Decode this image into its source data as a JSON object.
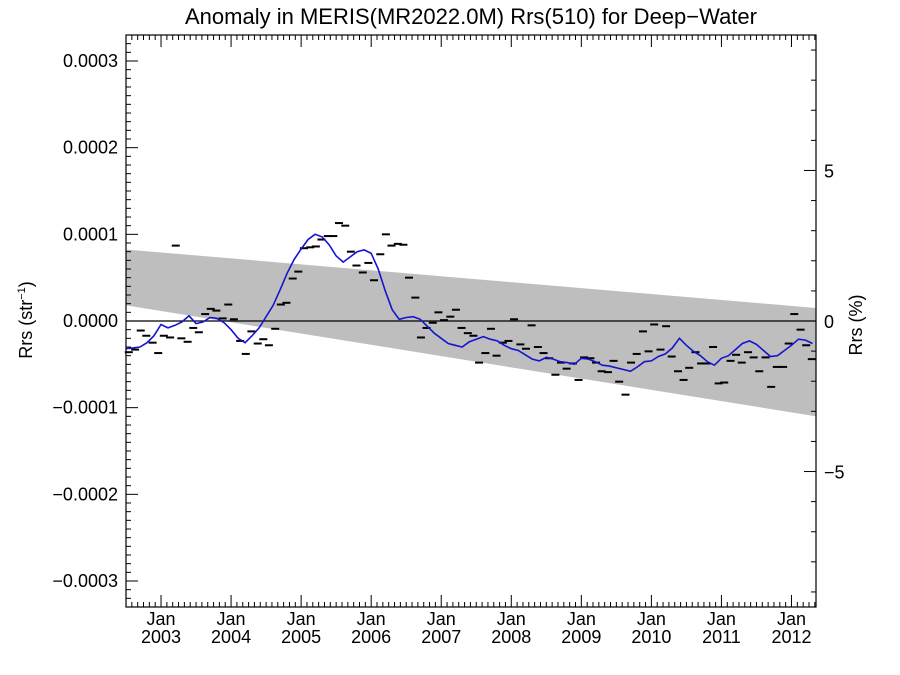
{
  "chart_data": {
    "type": "line",
    "title": "Anomaly in MERIS(MR2022.0M) Rrs(510) for Deep−Water",
    "ylabel": "Rrs (str",
    "ylabel_sup": "−1",
    "ylabel_close": ")",
    "y2label": "Rrs (%)",
    "xlim": [
      2002.5,
      2012.35
    ],
    "ylim": [
      -0.00033,
      0.00033
    ],
    "y2lim": [
      -9.5,
      9.5
    ],
    "xtick_month": "Jan",
    "xticks": [
      {
        "x": 2003.0,
        "label": "2003"
      },
      {
        "x": 2004.0,
        "label": "2004"
      },
      {
        "x": 2005.0,
        "label": "2005"
      },
      {
        "x": 2006.0,
        "label": "2006"
      },
      {
        "x": 2007.0,
        "label": "2007"
      },
      {
        "x": 2008.0,
        "label": "2008"
      },
      {
        "x": 2009.0,
        "label": "2009"
      },
      {
        "x": 2010.0,
        "label": "2010"
      },
      {
        "x": 2011.0,
        "label": "2011"
      },
      {
        "x": 2012.0,
        "label": "2012"
      }
    ],
    "yticks": [
      {
        "v": 0.0003,
        "label": "0.0003"
      },
      {
        "v": 0.0002,
        "label": "0.0002"
      },
      {
        "v": 0.0001,
        "label": "0.0001"
      },
      {
        "v": 0.0,
        "label": "0.0000"
      },
      {
        "v": -0.0001,
        "label": "−0.0001"
      },
      {
        "v": -0.0002,
        "label": "−0.0002"
      },
      {
        "v": -0.0003,
        "label": "−0.0003"
      }
    ],
    "y2ticks": [
      {
        "v": 5,
        "label": "5"
      },
      {
        "v": 0,
        "label": "0"
      },
      {
        "v": -5,
        "label": "−5"
      }
    ],
    "confidence_band": {
      "x": [
        2002.5,
        2012.35
      ],
      "upper": [
        8.25e-05,
        1.5e-05
      ],
      "lower": [
        1.8e-05,
        -0.00011
      ],
      "color": "#bebebe"
    },
    "zero_line": 0.0,
    "series": [
      {
        "style": "markers",
        "color": "#000000",
        "x": [
          2002.54,
          2002.63,
          2002.71,
          2002.79,
          2002.88,
          2002.96,
          2003.04,
          2003.13,
          2003.21,
          2003.29,
          2003.38,
          2003.46,
          2003.54,
          2003.63,
          2003.71,
          2003.79,
          2003.88,
          2003.96,
          2004.04,
          2004.13,
          2004.21,
          2004.29,
          2004.38,
          2004.46,
          2004.54,
          2004.63,
          2004.71,
          2004.79,
          2004.88,
          2004.96,
          2005.04,
          2005.13,
          2005.21,
          2005.29,
          2005.38,
          2005.46,
          2005.54,
          2005.63,
          2005.71,
          2005.79,
          2005.88,
          2005.96,
          2006.04,
          2006.13,
          2006.21,
          2006.29,
          2006.38,
          2006.46,
          2006.54,
          2006.63,
          2006.71,
          2006.79,
          2006.88,
          2006.96,
          2007.04,
          2007.13,
          2007.21,
          2007.29,
          2007.38,
          2007.46,
          2007.54,
          2007.63,
          2007.71,
          2007.79,
          2007.88,
          2007.96,
          2008.04,
          2008.13,
          2008.21,
          2008.29,
          2008.38,
          2008.46,
          2008.54,
          2008.63,
          2008.71,
          2008.79,
          2008.88,
          2008.96,
          2009.04,
          2009.13,
          2009.21,
          2009.29,
          2009.38,
          2009.46,
          2009.54,
          2009.63,
          2009.71,
          2009.79,
          2009.88,
          2009.96,
          2010.04,
          2010.13,
          2010.21,
          2010.29,
          2010.38,
          2010.46,
          2010.54,
          2010.63,
          2010.71,
          2010.79,
          2010.88,
          2010.96,
          2011.04,
          2011.13,
          2011.21,
          2011.29,
          2011.38,
          2011.46,
          2011.54,
          2011.63,
          2011.71,
          2011.79,
          2011.88,
          2011.96,
          2012.04,
          2012.13,
          2012.21,
          2012.29
        ],
        "y": [
          -3.6e-05,
          -3.3e-05,
          -1.1e-05,
          -1.7e-05,
          -2.5e-05,
          -3.7e-05,
          -1.7e-05,
          -1.9e-05,
          8.7e-05,
          -2e-05,
          -2.4e-05,
          -8e-06,
          -1.3e-05,
          8e-06,
          1.4e-05,
          1.2e-05,
          3e-06,
          1.9e-05,
          2e-06,
          -2.3e-05,
          -3.8e-05,
          -1.2e-05,
          -2.6e-05,
          -2.1e-05,
          -2.8e-05,
          -9e-06,
          1.9e-05,
          2.1e-05,
          4.9e-05,
          5.7e-05,
          8.4e-05,
          8.5e-05,
          8.6e-05,
          9.4e-05,
          9.8e-05,
          9.8e-05,
          0.000113,
          0.00011,
          8e-05,
          6.4e-05,
          5.6e-05,
          6.7e-05,
          4.7e-05,
          7.7e-05,
          0.0001,
          8.7e-05,
          8.9e-05,
          8.8e-05,
          5e-05,
          2.7e-05,
          -1.9e-05,
          -8e-06,
          -2e-06,
          1e-05,
          1e-06,
          5e-06,
          1.3e-05,
          -8e-06,
          -1.4e-05,
          -1.7e-05,
          -4.8e-05,
          -3.7e-05,
          -9e-06,
          -4e-05,
          -2.5e-05,
          -2.3e-05,
          2e-06,
          -2.7e-05,
          -3.2e-05,
          -5e-06,
          -3e-05,
          -3.7e-05,
          -4.3e-05,
          -6.2e-05,
          -4.8e-05,
          -5.5e-05,
          -4.9e-05,
          -6.8e-05,
          -4.2e-05,
          -4.3e-05,
          -4.8e-05,
          -5.8e-05,
          -5.9e-05,
          -4.6e-05,
          -7e-05,
          -8.5e-05,
          -4.8e-05,
          -3.8e-05,
          -1.2e-05,
          -3.5e-05,
          -4e-06,
          -3.3e-05,
          -6e-06,
          -4.1e-05,
          -5.8e-05,
          -6.8e-05,
          -5.4e-05,
          -3.6e-05,
          -4.9e-05,
          -4.9e-05,
          -3e-05,
          -7.2e-05,
          -7.1e-05,
          -4.6e-05,
          -3.9e-05,
          -4.8e-05,
          -3.6e-05,
          -4.2e-05,
          -5.8e-05,
          -4.2e-05,
          -7.6e-05,
          -5.3e-05,
          -5.3e-05,
          -2.6e-05,
          8e-06,
          -1e-05,
          -2.8e-05,
          -4.4e-05
        ]
      },
      {
        "style": "line",
        "color": "#1515d0",
        "x": [
          2002.5,
          2002.6,
          2002.7,
          2002.8,
          2002.9,
          2003.0,
          2003.1,
          2003.2,
          2003.3,
          2003.4,
          2003.5,
          2003.6,
          2003.7,
          2003.8,
          2003.9,
          2004.0,
          2004.1,
          2004.2,
          2004.3,
          2004.4,
          2004.5,
          2004.6,
          2004.7,
          2004.8,
          2004.9,
          2005.0,
          2005.1,
          2005.2,
          2005.3,
          2005.4,
          2005.5,
          2005.6,
          2005.7,
          2005.8,
          2005.9,
          2006.0,
          2006.1,
          2006.2,
          2006.3,
          2006.4,
          2006.5,
          2006.6,
          2006.7,
          2006.8,
          2006.9,
          2007.0,
          2007.1,
          2007.2,
          2007.3,
          2007.4,
          2007.5,
          2007.6,
          2007.7,
          2007.8,
          2007.9,
          2008.0,
          2008.1,
          2008.2,
          2008.3,
          2008.4,
          2008.5,
          2008.6,
          2008.7,
          2008.8,
          2008.9,
          2009.0,
          2009.1,
          2009.2,
          2009.3,
          2009.4,
          2009.5,
          2009.6,
          2009.7,
          2009.8,
          2009.9,
          2010.0,
          2010.1,
          2010.2,
          2010.3,
          2010.4,
          2010.5,
          2010.6,
          2010.7,
          2010.8,
          2010.9,
          2011.0,
          2011.1,
          2011.2,
          2011.3,
          2011.4,
          2011.5,
          2011.6,
          2011.7,
          2011.8,
          2011.9,
          2012.0,
          2012.1,
          2012.2,
          2012.3
        ],
        "y": [
          -3.2e-05,
          -3.1e-05,
          -3e-05,
          -2.5e-05,
          -1.7e-05,
          -4e-06,
          -8e-06,
          -5e-06,
          -1e-06,
          6e-06,
          -3e-06,
          -1e-06,
          4e-06,
          3e-06,
          -2e-06,
          -1e-05,
          -2e-05,
          -2.5e-05,
          -1.7e-05,
          -8e-06,
          5e-06,
          1.8e-05,
          3.6e-05,
          5.5e-05,
          7.1e-05,
          8.3e-05,
          9.4e-05,
          0.0001,
          9.7e-05,
          8.8e-05,
          7.5e-05,
          6.8e-05,
          7.4e-05,
          8e-05,
          8.2e-05,
          7.8e-05,
          6e-05,
          3.5e-05,
          1.3e-05,
          2e-06,
          4e-06,
          5e-06,
          2e-06,
          -6e-06,
          -1.4e-05,
          -2e-05,
          -2.6e-05,
          -2.8e-05,
          -3e-05,
          -2.4e-05,
          -2.1e-05,
          -1.8e-05,
          -2.1e-05,
          -2.3e-05,
          -2.8e-05,
          -3.2e-05,
          -3.4e-05,
          -3.9e-05,
          -4.4e-05,
          -4.6e-05,
          -4.2e-05,
          -4.4e-05,
          -4.7e-05,
          -4.8e-05,
          -5e-05,
          -4.3e-05,
          -4.4e-05,
          -4.7e-05,
          -5.1e-05,
          -5.2e-05,
          -5.4e-05,
          -5.6e-05,
          -5.8e-05,
          -5.3e-05,
          -4.7e-05,
          -4.6e-05,
          -4.1e-05,
          -3.8e-05,
          -3.1e-05,
          -2e-05,
          -2.8e-05,
          -3.5e-05,
          -4e-05,
          -4.7e-05,
          -5.1e-05,
          -4.3e-05,
          -4e-05,
          -3.3e-05,
          -2.6e-05,
          -2.3e-05,
          -2.7e-05,
          -3.4e-05,
          -4.1e-05,
          -4e-05,
          -3.4e-05,
          -2.8e-05,
          -2.1e-05,
          -2.2e-05,
          -2.6e-05
        ]
      }
    ]
  }
}
